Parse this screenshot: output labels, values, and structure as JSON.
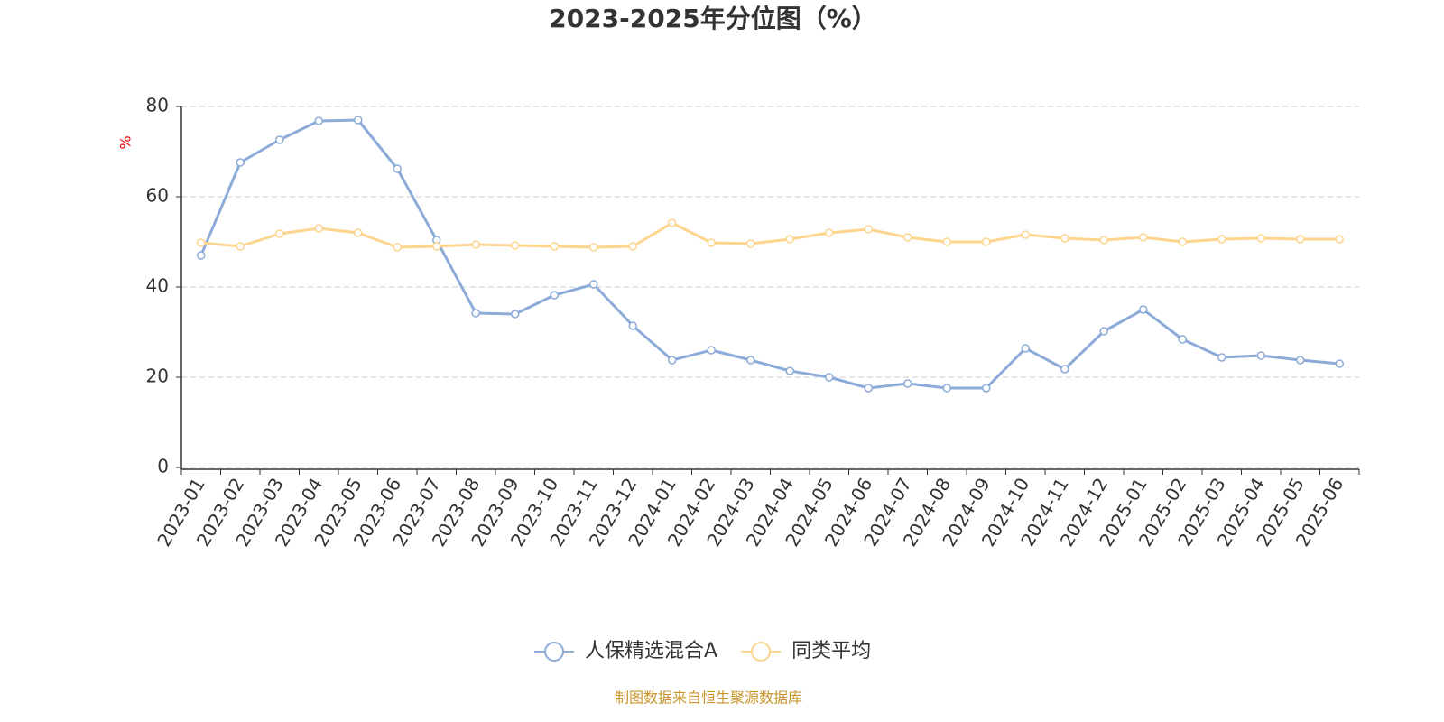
{
  "chart_data": {
    "type": "line",
    "title": "2023-2025年分位图（%）",
    "y_label": "%",
    "source": "制图数据来自恒生聚源数据库",
    "categories": [
      "2023-01",
      "2023-02",
      "2023-03",
      "2023-04",
      "2023-05",
      "2023-06",
      "2023-07",
      "2023-08",
      "2023-09",
      "2023-10",
      "2023-11",
      "2023-12",
      "2024-01",
      "2024-02",
      "2024-03",
      "2024-04",
      "2024-05",
      "2024-06",
      "2024-07",
      "2024-08",
      "2024-09",
      "2024-10",
      "2024-11",
      "2024-12",
      "2025-01",
      "2025-02",
      "2025-03",
      "2025-04",
      "2025-05",
      "2025-06"
    ],
    "series": [
      {
        "name": "人保精选混合A",
        "color": "#8dabd8",
        "values": [
          47,
          67.6,
          72.6,
          76.8,
          77,
          66.2,
          50.4,
          34.2,
          34,
          38.2,
          40.6,
          31.4,
          23.8,
          26,
          23.8,
          21.4,
          20,
          17.6,
          18.6,
          17.6,
          17.6,
          26.4,
          21.8,
          30.2,
          35,
          28.4,
          24.4,
          24.8,
          23.8,
          23
        ]
      },
      {
        "name": "同类平均",
        "color": "#fdd58e",
        "values": [
          49.8,
          49,
          51.8,
          53,
          52,
          48.8,
          49,
          49.4,
          49.2,
          49,
          48.8,
          49,
          54.2,
          49.8,
          49.6,
          50.6,
          52,
          52.8,
          51,
          50,
          50,
          51.6,
          50.8,
          50.4,
          51,
          50,
          50.6,
          50.8,
          50.6,
          50.6
        ]
      }
    ],
    "ylim": [
      0,
      80
    ],
    "yticks": [
      0,
      20,
      40,
      60,
      80
    ],
    "grid": true
  }
}
